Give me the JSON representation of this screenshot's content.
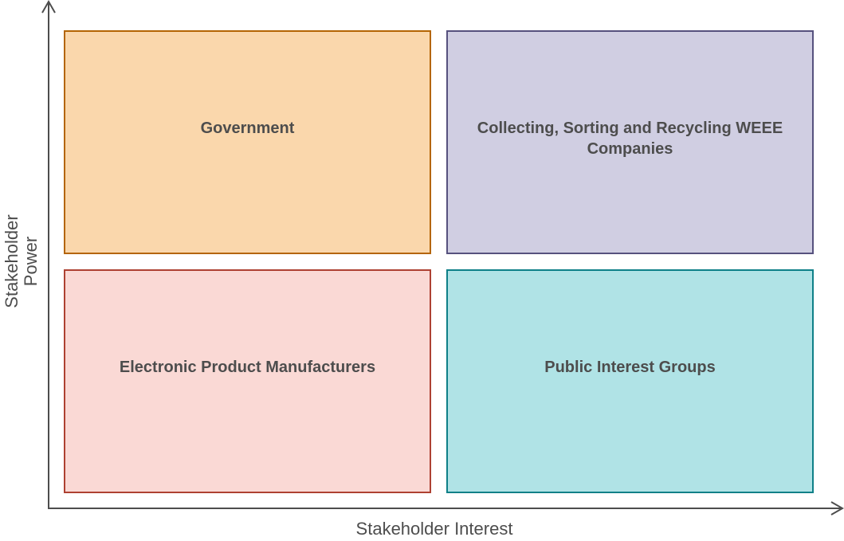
{
  "axes": {
    "x_label": "Stakeholder Interest",
    "y_label": "Stakeholder Power"
  },
  "quadrants": {
    "top_left": {
      "label": "Government",
      "fill": "#fad7ac",
      "stroke": "#b46504"
    },
    "top_right": {
      "label": "Collecting, Sorting and Recycling WEEE Companies",
      "fill": "#d0cee2",
      "stroke": "#56517e"
    },
    "bottom_left": {
      "label": "Electronic Product Manufacturers",
      "fill": "#fad9d5",
      "stroke": "#ae4132"
    },
    "bottom_right": {
      "label": "Public Interest Groups",
      "fill": "#b0e3e6",
      "stroke": "#0e8088"
    }
  },
  "colors": {
    "axis": "#4d4d4d",
    "text": "#4d4d4d"
  }
}
